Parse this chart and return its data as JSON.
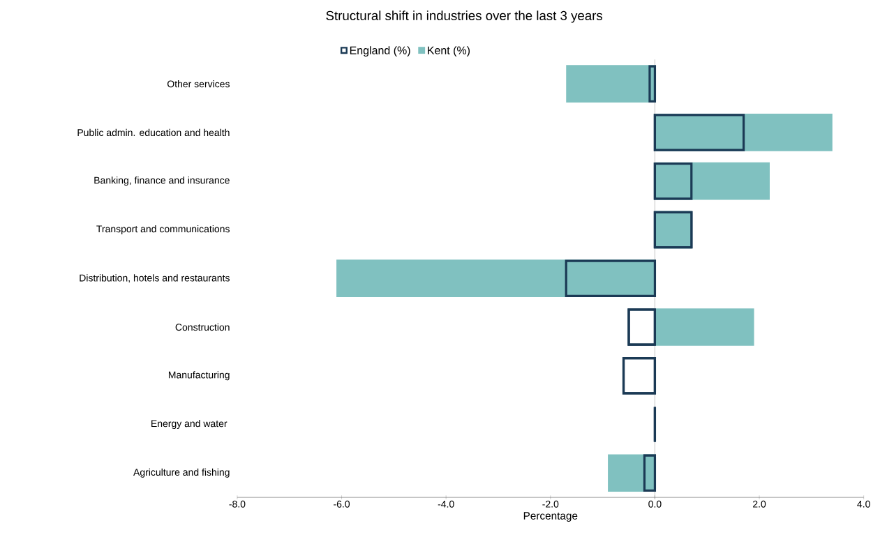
{
  "chart_data": {
    "type": "bar",
    "orientation": "horizontal",
    "title": "Structural shift in industries over the last 3 years",
    "xlabel": "Percentage",
    "categories": [
      "Other services",
      "Public admin. education and health",
      "Banking, finance and insurance",
      "Transport and communications",
      "Distribution, hotels and restaurants",
      "Construction",
      "Manufacturing",
      "Energy and water ",
      "Agriculture and fishing"
    ],
    "series": [
      {
        "name": "Kent (%)",
        "color": "#80c1c0",
        "values": [
          -1.7,
          3.4,
          2.2,
          0.7,
          -6.1,
          1.9,
          0,
          0,
          -0.9
        ]
      },
      {
        "name": "England (%)",
        "color": "#1b3a55",
        "line_style": "solid",
        "values": [
          -0.1,
          1.7,
          0.7,
          0.7,
          -1.7,
          -0.5,
          -0.6,
          0,
          -0.2
        ]
      }
    ],
    "xlim": [
      -8,
      4
    ],
    "xticks": [
      {
        "value": -8,
        "label": "-8.0"
      },
      {
        "value": -6,
        "label": "-6.0"
      },
      {
        "value": -4,
        "label": "-4.0"
      },
      {
        "value": -2,
        "label": "-2.0"
      },
      {
        "value": 0,
        "label": "0.0"
      },
      {
        "value": 2,
        "label": "2.0"
      },
      {
        "value": 4,
        "label": "4.0"
      }
    ],
    "legend": "top"
  }
}
